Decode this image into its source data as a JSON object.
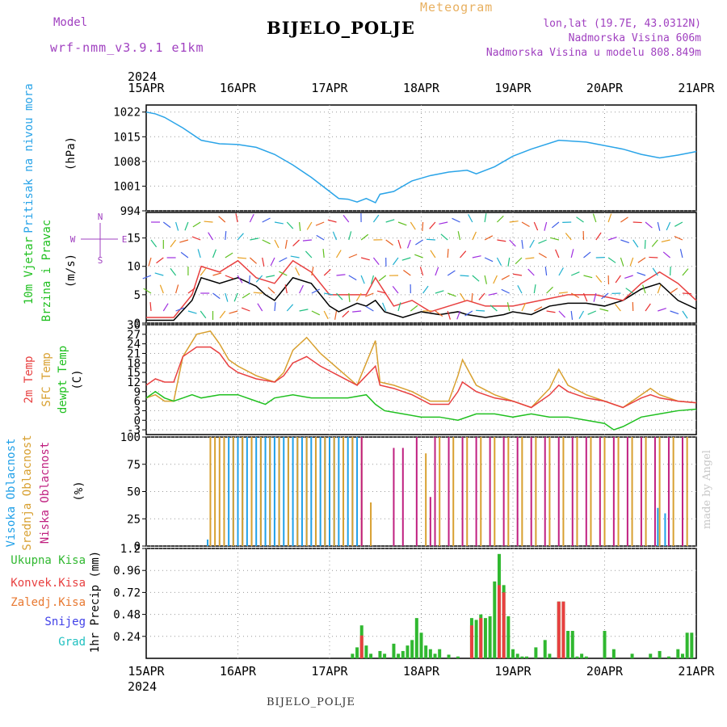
{
  "header": {
    "model_label": "Model",
    "model_name": "wrf-nmm_v3.9.1  e1km",
    "app_title": "Meteogram",
    "station": "BIJELO_POLJE",
    "lonlat": "lon,lat (19.7E, 43.0312N)",
    "elevation": "Nadmorska Visina 606m",
    "model_elevation": "Nadmorska Visina u modelu 808.849m"
  },
  "footer": {
    "station": "BIJELO_POLJE",
    "credit": "made by Angel"
  },
  "time_axis": {
    "year": "2024",
    "ticks": [
      "15APR",
      "16APR",
      "17APR",
      "18APR",
      "19APR",
      "20APR",
      "21APR"
    ]
  },
  "colors": {
    "pressure": "#2aa4e8",
    "temp2m": "#e84040",
    "sfc_temp": "#d8a030",
    "dewpoint": "#20c020",
    "high_cloud": "#20a0e8",
    "mid_cloud": "#d8a030",
    "low_cloud": "#c02080",
    "total_precip": "#30b830",
    "conv_precip": "#e84040",
    "frozen_precip": "#e87830",
    "snow": "#4040e8",
    "hail": "#20c0c0",
    "wind_speed": "#000000",
    "gust": "#e84040"
  },
  "chart_data": [
    {
      "type": "line",
      "ylabel": [
        "Pritisak na nivou mora",
        "(hPa)"
      ],
      "ylim": [
        994,
        1024
      ],
      "yticks": [
        "1022",
        "1015",
        "1008",
        "1001",
        "994"
      ],
      "grid": true,
      "series": [
        {
          "key": "pressure",
          "x": [
            0,
            0.1,
            0.2,
            0.4,
            0.6,
            0.8,
            1.0,
            1.2,
            1.4,
            1.6,
            1.8,
            2.0,
            2.1,
            2.2,
            2.3,
            2.4,
            2.5,
            2.55,
            2.7,
            2.9,
            3.1,
            3.3,
            3.5,
            3.6,
            3.8,
            4.0,
            4.2,
            4.5,
            4.8,
            5.0,
            5.2,
            5.4,
            5.6,
            5.8,
            6.0
          ],
          "values": [
            1022,
            1021.5,
            1020.5,
            1017.5,
            1014,
            1013,
            1012.8,
            1012,
            1010,
            1007,
            1003.5,
            999.5,
            997.5,
            997.3,
            996.5,
            997.5,
            996.3,
            998.7,
            999.5,
            1002.5,
            1004,
            1005,
            1005.5,
            1004.5,
            1006.5,
            1009.5,
            1011.5,
            1014,
            1013.5,
            1012.5,
            1011.5,
            1010,
            1009,
            1009.8,
            1010.8
          ]
        }
      ]
    },
    {
      "type": "scatter",
      "ylabel": [
        "10m Vjetar",
        "Brzina i Pravac",
        "(m/s)"
      ],
      "compass": [
        "N",
        "E",
        "S",
        "W"
      ],
      "ylim": [
        0,
        19.5
      ],
      "yticks": [
        "15",
        "10",
        "5",
        "0"
      ],
      "grid": true,
      "series": [
        {
          "key": "wind_speed",
          "x": [
            0,
            0.3,
            0.5,
            0.6,
            0.8,
            1.0,
            1.2,
            1.3,
            1.4,
            1.6,
            1.8,
            2.0,
            2.1,
            2.3,
            2.4,
            2.5,
            2.6,
            2.8,
            3.0,
            3.2,
            3.4,
            3.5,
            3.7,
            3.9,
            4.0,
            4.2,
            4.4,
            4.6,
            4.8,
            5.0,
            5.2,
            5.4,
            5.6,
            5.8,
            6.0
          ],
          "values": [
            0.5,
            0.5,
            4,
            8,
            7,
            8,
            6.5,
            5,
            4,
            8,
            7,
            3,
            2,
            3.5,
            3,
            4,
            2,
            1,
            2,
            1.5,
            2,
            1.5,
            1,
            1.5,
            2,
            1.5,
            3,
            3.5,
            3.5,
            3,
            4,
            6,
            7,
            4,
            2.5
          ]
        },
        {
          "key": "gust",
          "x": [
            0,
            0.3,
            0.5,
            0.6,
            0.8,
            1.0,
            1.2,
            1.4,
            1.6,
            1.8,
            2.0,
            2.2,
            2.4,
            2.5,
            2.7,
            2.9,
            3.1,
            3.3,
            3.5,
            3.7,
            4.0,
            4.3,
            4.6,
            4.9,
            5.2,
            5.4,
            5.6,
            5.8,
            6.0
          ],
          "values": [
            1,
            1,
            5,
            10,
            9,
            11,
            8,
            7,
            11,
            9,
            5,
            5,
            5,
            8,
            3,
            4,
            2,
            3,
            4,
            3,
            3,
            4,
            5,
            5,
            4,
            7,
            9,
            7,
            4
          ]
        }
      ]
    },
    {
      "type": "line",
      "ylabel": [
        "2m Temp",
        "SFC Temp",
        "dewpt Temp",
        "(C)"
      ],
      "ylim": [
        -4.5,
        30
      ],
      "yticks": [
        "30",
        "27",
        "24",
        "21",
        "18",
        "15",
        "12",
        "9",
        "6",
        "3",
        "0",
        "-3"
      ],
      "grid": true,
      "series": [
        {
          "key": "sfc_temp",
          "x": [
            0,
            0.1,
            0.2,
            0.3,
            0.4,
            0.55,
            0.7,
            0.8,
            0.9,
            1.0,
            1.2,
            1.4,
            1.5,
            1.6,
            1.75,
            1.9,
            2.1,
            2.3,
            2.4,
            2.5,
            2.55,
            2.7,
            2.9,
            3.1,
            3.3,
            3.4,
            3.45,
            3.6,
            3.8,
            4.0,
            4.2,
            4.4,
            4.5,
            4.6,
            4.8,
            5.0,
            5.2,
            5.4,
            5.5,
            5.6,
            5.8,
            6.0
          ],
          "values": [
            7,
            8,
            6,
            6,
            20,
            27,
            28,
            24,
            19,
            17,
            14,
            12,
            15,
            22,
            26,
            21,
            16,
            11,
            18,
            25,
            12,
            11,
            9,
            6,
            6,
            14,
            19,
            11,
            8,
            6,
            4,
            10,
            16,
            11,
            8,
            6,
            4,
            8,
            10,
            8,
            6,
            5.5
          ]
        },
        {
          "key": "temp2m",
          "x": [
            0,
            0.1,
            0.2,
            0.3,
            0.4,
            0.55,
            0.7,
            0.8,
            0.9,
            1.0,
            1.2,
            1.4,
            1.5,
            1.6,
            1.75,
            1.9,
            2.1,
            2.3,
            2.4,
            2.5,
            2.55,
            2.7,
            2.9,
            3.1,
            3.3,
            3.4,
            3.45,
            3.6,
            3.8,
            4.0,
            4.2,
            4.4,
            4.5,
            4.6,
            4.8,
            5.0,
            5.2,
            5.4,
            5.5,
            5.6,
            5.8,
            6.0
          ],
          "values": [
            11,
            13,
            12,
            12,
            20,
            23,
            23,
            21,
            17,
            15,
            13,
            12,
            14,
            18,
            20,
            17,
            14,
            11,
            14,
            17,
            11,
            10,
            8,
            5,
            5,
            9,
            12,
            9,
            7,
            6,
            4,
            8,
            11,
            9,
            7,
            6,
            4,
            7,
            8,
            7,
            6,
            5.5
          ]
        },
        {
          "key": "dewpoint",
          "x": [
            0,
            0.1,
            0.2,
            0.3,
            0.4,
            0.5,
            0.6,
            0.8,
            1.0,
            1.2,
            1.3,
            1.4,
            1.6,
            1.8,
            2.0,
            2.2,
            2.4,
            2.5,
            2.6,
            2.8,
            3.0,
            3.2,
            3.4,
            3.6,
            3.8,
            4.0,
            4.2,
            4.4,
            4.6,
            4.8,
            5.0,
            5.1,
            5.2,
            5.4,
            5.6,
            5.8,
            6.0
          ],
          "values": [
            7,
            9,
            7,
            6,
            7,
            8,
            7,
            8,
            8,
            6,
            5,
            7,
            8,
            7,
            7,
            7,
            8,
            5,
            3,
            2,
            1,
            1,
            0,
            2,
            2,
            1,
            2,
            1,
            1,
            0,
            -1,
            -3,
            -2,
            1,
            2,
            3,
            3.5
          ]
        }
      ]
    },
    {
      "type": "bar",
      "ylabel": [
        "Visoka Oblacnost",
        "Srednja Oblacnost",
        "Niska Oblacnost",
        "(%)"
      ],
      "ylim": [
        0,
        100
      ],
      "yticks": [
        "100",
        "75",
        "50",
        "25",
        "0"
      ],
      "grid": true,
      "series": [
        {
          "key": "high_cloud",
          "x": [
            0.67,
            0.9,
            0.95,
            1.0,
            1.05,
            1.1,
            1.15,
            1.2,
            1.25,
            1.3,
            1.35,
            1.4,
            1.45,
            1.5,
            1.55,
            1.6,
            1.65,
            1.7,
            1.75,
            1.8,
            1.85,
            1.9,
            1.95,
            2.0,
            2.05,
            2.1,
            2.15,
            2.2,
            2.25,
            2.3,
            5.58,
            5.66
          ],
          "values": [
            6,
            100,
            100,
            100,
            100,
            100,
            100,
            100,
            100,
            100,
            100,
            100,
            100,
            100,
            100,
            100,
            100,
            100,
            100,
            100,
            100,
            100,
            100,
            100,
            100,
            100,
            100,
            100,
            100,
            100,
            35,
            30
          ]
        },
        {
          "key": "mid_cloud",
          "x": [
            0.7,
            0.75,
            0.8,
            0.85,
            0.95,
            1.05,
            1.15,
            1.25,
            1.35,
            1.45,
            1.55,
            1.65,
            1.75,
            1.85,
            1.95,
            2.05,
            2.15,
            2.25,
            2.35,
            2.45,
            3.05,
            3.2,
            3.35,
            3.5,
            3.65,
            3.8,
            3.95,
            4.1,
            4.25,
            4.4,
            4.55,
            4.7,
            4.85,
            5.0,
            5.15,
            5.3,
            5.45,
            5.6,
            5.75,
            5.9
          ],
          "values": [
            100,
            100,
            100,
            100,
            100,
            100,
            100,
            100,
            100,
            100,
            100,
            100,
            100,
            100,
            100,
            100,
            100,
            100,
            100,
            40,
            85,
            100,
            100,
            100,
            100,
            100,
            100,
            100,
            100,
            100,
            100,
            100,
            100,
            100,
            100,
            100,
            100,
            100,
            100,
            100
          ]
        },
        {
          "key": "low_cloud",
          "x": [
            2.35,
            2.7,
            2.8,
            2.95,
            3.1,
            3.15,
            3.3,
            3.45,
            3.6,
            3.75,
            3.9,
            4.05,
            4.2,
            4.35,
            4.5,
            4.65,
            4.8,
            4.95,
            5.1,
            5.25,
            5.4,
            5.55,
            5.7,
            5.85
          ],
          "values": [
            100,
            90,
            90,
            100,
            45,
            100,
            100,
            100,
            100,
            100,
            100,
            100,
            100,
            100,
            100,
            100,
            100,
            100,
            100,
            100,
            100,
            100,
            100,
            100
          ]
        }
      ]
    },
    {
      "type": "bar",
      "ylabel": [
        "1hr Precip (mm)"
      ],
      "legend": [
        "Ukupna Kisa",
        "Konvek.Kisa",
        "Zaledj.Kisa",
        "Snijeg",
        "Grad"
      ],
      "ylim": [
        0,
        1.2
      ],
      "yticks": [
        "1.2",
        "0.96",
        "0.72",
        "0.48",
        "0.24"
      ],
      "grid": true,
      "series": [
        {
          "key": "total_precip",
          "x": [
            2.25,
            2.3,
            2.35,
            2.4,
            2.45,
            2.55,
            2.6,
            2.7,
            2.75,
            2.8,
            2.85,
            2.9,
            2.95,
            3.0,
            3.05,
            3.1,
            3.15,
            3.2,
            3.3,
            3.4,
            3.55,
            3.6,
            3.65,
            3.7,
            3.75,
            3.8,
            3.85,
            3.9,
            3.95,
            4.0,
            4.05,
            4.1,
            4.15,
            4.25,
            4.35,
            4.4,
            4.5,
            4.55,
            4.6,
            4.65,
            4.7,
            4.75,
            4.8,
            5.0,
            5.1,
            5.3,
            5.5,
            5.6,
            5.7,
            5.8,
            5.85,
            5.9,
            5.95
          ],
          "values": [
            0.05,
            0.12,
            0.36,
            0.14,
            0.05,
            0.08,
            0.05,
            0.16,
            0.05,
            0.08,
            0.14,
            0.2,
            0.44,
            0.28,
            0.14,
            0.1,
            0.05,
            0.1,
            0.04,
            0.02,
            0.44,
            0.42,
            0.48,
            0.44,
            0.46,
            0.84,
            1.14,
            0.8,
            0.46,
            0.1,
            0.05,
            0.02,
            0.02,
            0.12,
            0.2,
            0.05,
            0.62,
            0.62,
            0.3,
            0.3,
            0.02,
            0.05,
            0.02,
            0.3,
            0.1,
            0.05,
            0.05,
            0.08,
            0.02,
            0.1,
            0.05,
            0.28,
            0.28
          ]
        },
        {
          "key": "conv_precip",
          "x": [
            2.35,
            3.55,
            3.65,
            3.85,
            3.9,
            4.5,
            4.55
          ],
          "values": [
            0.25,
            0.36,
            0.44,
            0.8,
            0.72,
            0.62,
            0.62
          ]
        }
      ]
    }
  ]
}
